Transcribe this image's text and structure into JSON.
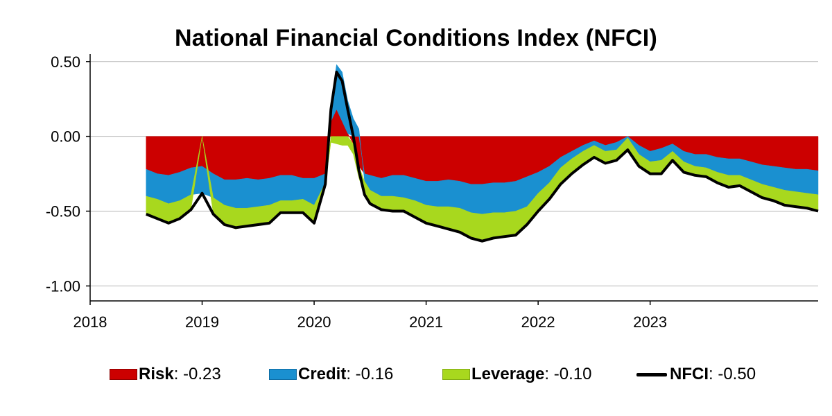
{
  "chart_data": {
    "type": "area",
    "title": "National Financial Conditions Index (NFCI)",
    "xlabel": "",
    "ylabel": "",
    "xlim": [
      2018.0,
      2024.5
    ],
    "ylim": [
      -1.1,
      0.55
    ],
    "y_ticks": [
      0.5,
      0.0,
      -0.5,
      -1.0
    ],
    "y_tick_labels": [
      "0.50",
      "0.00",
      "-0.50",
      "-1.00"
    ],
    "x_ticks": [
      2018,
      2019,
      2020,
      2021,
      2022,
      2023
    ],
    "x_tick_labels": [
      "2018",
      "2019",
      "2020",
      "2021",
      "2022",
      "2023"
    ],
    "grid": "horizontal",
    "x": [
      2018.5,
      2018.6,
      2018.7,
      2018.8,
      2018.9,
      2019.0,
      2019.1,
      2019.2,
      2019.3,
      2019.4,
      2019.5,
      2019.6,
      2019.7,
      2019.8,
      2019.9,
      2020.0,
      2020.1,
      2020.15,
      2020.2,
      2020.25,
      2020.3,
      2020.35,
      2020.4,
      2020.45,
      2020.5,
      2020.6,
      2020.7,
      2020.8,
      2020.9,
      2021.0,
      2021.1,
      2021.2,
      2021.3,
      2021.4,
      2021.5,
      2021.6,
      2021.7,
      2021.8,
      2021.9,
      2022.0,
      2022.1,
      2022.2,
      2022.3,
      2022.4,
      2022.5,
      2022.6,
      2022.7,
      2022.8,
      2022.9,
      2023.0,
      2023.1,
      2023.2,
      2023.3,
      2023.4,
      2023.5,
      2023.6,
      2023.7,
      2023.8,
      2023.9,
      2024.0,
      2024.1,
      2024.2,
      2024.3,
      2024.4,
      2024.5
    ],
    "series": [
      {
        "name": "Risk",
        "color": "#cc0000",
        "values": [
          -0.22,
          -0.25,
          -0.26,
          -0.24,
          -0.21,
          -0.2,
          -0.25,
          -0.29,
          -0.29,
          -0.28,
          -0.29,
          -0.28,
          -0.26,
          -0.26,
          -0.28,
          -0.28,
          -0.25,
          0.1,
          0.18,
          0.1,
          0.02,
          -0.05,
          -0.2,
          -0.25,
          -0.26,
          -0.28,
          -0.26,
          -0.26,
          -0.28,
          -0.3,
          -0.3,
          -0.29,
          -0.3,
          -0.32,
          -0.32,
          -0.31,
          -0.31,
          -0.3,
          -0.27,
          -0.24,
          -0.2,
          -0.14,
          -0.1,
          -0.06,
          -0.03,
          -0.06,
          -0.04,
          0.0,
          -0.06,
          -0.1,
          -0.08,
          -0.05,
          -0.1,
          -0.12,
          -0.12,
          -0.14,
          -0.15,
          -0.15,
          -0.17,
          -0.19,
          -0.2,
          -0.21,
          -0.22,
          -0.22,
          -0.23
        ]
      },
      {
        "name": "Credit",
        "color": "#1a90d0",
        "values": [
          -0.18,
          -0.17,
          -0.19,
          -0.19,
          -0.18,
          -0.18,
          -0.16,
          -0.17,
          -0.19,
          -0.2,
          -0.18,
          -0.18,
          -0.17,
          -0.17,
          -0.14,
          -0.18,
          -0.06,
          0.12,
          0.3,
          0.33,
          0.22,
          0.12,
          0.05,
          -0.05,
          -0.1,
          -0.12,
          -0.14,
          -0.15,
          -0.15,
          -0.16,
          -0.17,
          -0.18,
          -0.18,
          -0.19,
          -0.2,
          -0.2,
          -0.2,
          -0.2,
          -0.2,
          -0.14,
          -0.11,
          -0.07,
          -0.05,
          -0.04,
          -0.03,
          -0.04,
          -0.05,
          -0.01,
          -0.06,
          -0.07,
          -0.08,
          -0.05,
          -0.07,
          -0.08,
          -0.09,
          -0.1,
          -0.11,
          -0.11,
          -0.12,
          -0.13,
          -0.14,
          -0.15,
          -0.15,
          -0.16,
          -0.16
        ]
      },
      {
        "name": "Leverage",
        "color": "#a8d81e",
        "values": [
          -0.12,
          -0.13,
          -0.13,
          -0.12,
          -0.1,
          -0.0,
          -0.11,
          -0.13,
          -0.14,
          -0.12,
          -0.12,
          -0.12,
          -0.08,
          -0.08,
          -0.09,
          -0.12,
          -0.01,
          -0.04,
          -0.05,
          -0.06,
          -0.06,
          -0.07,
          -0.08,
          -0.09,
          -0.09,
          -0.09,
          -0.1,
          -0.09,
          -0.11,
          -0.12,
          -0.13,
          -0.15,
          -0.16,
          -0.17,
          -0.18,
          -0.17,
          -0.16,
          -0.16,
          -0.12,
          -0.12,
          -0.11,
          -0.11,
          -0.1,
          -0.09,
          -0.08,
          -0.08,
          -0.07,
          -0.08,
          -0.08,
          -0.08,
          -0.09,
          -0.06,
          -0.07,
          -0.06,
          -0.06,
          -0.07,
          -0.08,
          -0.07,
          -0.08,
          -0.09,
          -0.09,
          -0.1,
          -0.1,
          -0.1,
          -0.1
        ]
      },
      {
        "name": "NFCI",
        "color": "#000000",
        "values": [
          -0.52,
          -0.55,
          -0.58,
          -0.55,
          -0.49,
          -0.38,
          -0.52,
          -0.59,
          -0.61,
          -0.6,
          -0.59,
          -0.58,
          -0.51,
          -0.51,
          -0.51,
          -0.58,
          -0.32,
          0.18,
          0.43,
          0.37,
          0.18,
          0.0,
          -0.23,
          -0.39,
          -0.45,
          -0.49,
          -0.5,
          -0.5,
          -0.54,
          -0.58,
          -0.6,
          -0.62,
          -0.64,
          -0.68,
          -0.7,
          -0.68,
          -0.67,
          -0.66,
          -0.59,
          -0.5,
          -0.42,
          -0.32,
          -0.25,
          -0.19,
          -0.14,
          -0.18,
          -0.16,
          -0.09,
          -0.2,
          -0.25,
          -0.25,
          -0.16,
          -0.24,
          -0.26,
          -0.27,
          -0.31,
          -0.34,
          -0.33,
          -0.37,
          -0.41,
          -0.43,
          -0.46,
          -0.47,
          -0.48,
          -0.5
        ]
      }
    ],
    "legend": {
      "placement": "bottom",
      "items": [
        {
          "name": "Risk",
          "value": ": -0.23"
        },
        {
          "name": "Credit",
          "value": ": -0.16"
        },
        {
          "name": "Leverage",
          "value": ": -0.10"
        },
        {
          "name": "NFCI",
          "value": ": -0.50"
        }
      ]
    }
  }
}
